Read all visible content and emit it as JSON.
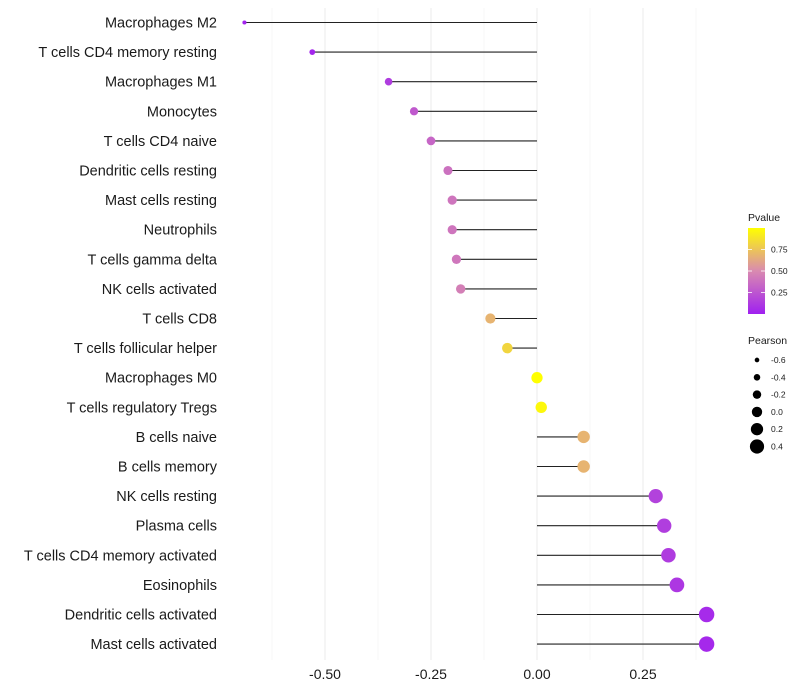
{
  "chart_data": {
    "type": "scatter",
    "subtype": "lollipop",
    "title": "",
    "xlabel": "",
    "ylabel": "",
    "xlim": [
      -0.75,
      0.45
    ],
    "xticks": [
      -0.5,
      -0.25,
      0.0,
      0.25
    ],
    "xtick_labels": [
      "-0.50",
      "-0.25",
      "0.00",
      "0.25"
    ],
    "grid": true,
    "categories": [
      "Macrophages M2",
      "T cells CD4 memory resting",
      "Macrophages M1",
      "Monocytes",
      "T cells CD4 naive",
      "Dendritic cells resting",
      "Mast cells resting",
      "Neutrophils",
      "T cells gamma delta",
      "NK cells activated",
      "T cells CD8",
      "T cells follicular helper",
      "Macrophages M0",
      "T cells regulatory  Tregs ",
      "B cells naive",
      "B cells memory",
      "NK cells resting",
      "Plasma cells",
      "T cells CD4 memory activated",
      "Eosinophils",
      "Dendritic cells activated",
      "Mast cells activated"
    ],
    "pearson": [
      -0.69,
      -0.53,
      -0.35,
      -0.29,
      -0.25,
      -0.21,
      -0.2,
      -0.2,
      -0.19,
      -0.18,
      -0.11,
      -0.07,
      0.0,
      0.01,
      0.11,
      0.11,
      0.28,
      0.3,
      0.31,
      0.33,
      0.4,
      0.4
    ],
    "pvalue": [
      0.02,
      0.03,
      0.13,
      0.27,
      0.33,
      0.38,
      0.4,
      0.4,
      0.41,
      0.45,
      0.68,
      0.82,
      1.0,
      0.97,
      0.68,
      0.68,
      0.16,
      0.14,
      0.13,
      0.11,
      0.05,
      0.04
    ],
    "legend": {
      "color": {
        "title": "Pvalue",
        "ticks": [
          0.25,
          0.5,
          0.75
        ],
        "tick_labels": [
          "0.25",
          "0.50",
          "0.75"
        ],
        "range": [
          0.0,
          1.0
        ],
        "low_color": "#a020f0",
        "high_color": "#ffff00"
      },
      "size": {
        "title": "Pearson",
        "values": [
          -0.6,
          -0.4,
          -0.2,
          0.0,
          0.2,
          0.4
        ],
        "labels": [
          "-0.6",
          "-0.4",
          "-0.2",
          "0.0",
          "0.2",
          "0.4"
        ]
      },
      "position": "right"
    }
  }
}
